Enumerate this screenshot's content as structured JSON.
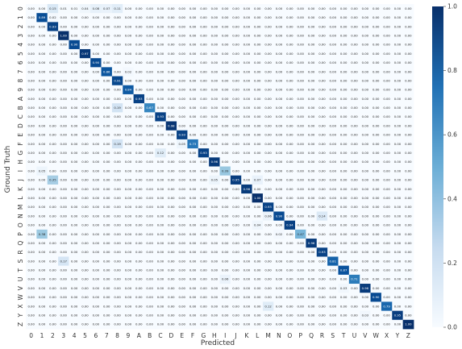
{
  "chart_data": {
    "type": "heatmap",
    "title": "",
    "xlabel": "Predicted",
    "ylabel": "Ground Truth",
    "labels": [
      "0",
      "1",
      "2",
      "3",
      "4",
      "5",
      "6",
      "7",
      "8",
      "9",
      "A",
      "B",
      "C",
      "D",
      "E",
      "F",
      "G",
      "H",
      "I",
      "J",
      "K",
      "L",
      "M",
      "N",
      "O",
      "P",
      "Q",
      "R",
      "S",
      "T",
      "U",
      "V",
      "W",
      "X",
      "Y",
      "Z"
    ],
    "value_range": [
      0.0,
      1.0
    ],
    "colorbar_ticks": [
      "0.0",
      "0.2",
      "0.4",
      "0.6",
      "0.8",
      "1.0"
    ],
    "colormap": "Blues",
    "cell_value_format": "2 decimals",
    "diagonal": [
      0.0,
      0.89,
      0.93,
      1.0,
      0.9,
      0.97,
      0.9,
      0.86,
      0.91,
      0.84,
      0.93,
      0.67,
      0.93,
      0.98,
      0.93,
      0.73,
      0.93,
      0.96,
      0.39,
      0.95,
      0.96,
      1.0,
      0.93,
      0.9,
      0.94,
      0.47,
      0.96,
      0.93,
      0.81,
      0.87,
      0.71,
      0.96,
      0.9,
      0.79,
      0.95,
      1.0
    ],
    "off_diagonal": [
      {
        "row": "0",
        "col": "2",
        "value": 0.15
      },
      {
        "row": "0",
        "col": "3",
        "value": 0.01
      },
      {
        "row": "0",
        "col": "4",
        "value": 0.01
      },
      {
        "row": "0",
        "col": "5",
        "value": 0.04
      },
      {
        "row": "0",
        "col": "6",
        "value": 0.08
      },
      {
        "row": "0",
        "col": "7",
        "value": 0.07
      },
      {
        "row": "0",
        "col": "8",
        "value": 0.11
      },
      {
        "row": "1",
        "col": "2",
        "value": 0.02
      },
      {
        "row": "7",
        "col": "9",
        "value": 0.02
      },
      {
        "row": "B",
        "col": "8",
        "value": 0.19
      },
      {
        "row": "F",
        "col": "8",
        "value": 0.19
      },
      {
        "row": "F",
        "col": "E",
        "value": 0.05
      },
      {
        "row": "G",
        "col": "C",
        "value": 0.12
      },
      {
        "row": "I",
        "col": "1",
        "value": 0.05
      },
      {
        "row": "J",
        "col": "2",
        "value": 0.35
      },
      {
        "row": "J",
        "col": "H",
        "value": 0.05
      },
      {
        "row": "J",
        "col": "L",
        "value": 0.07
      },
      {
        "row": "N",
        "col": "M",
        "value": 0.06
      },
      {
        "row": "N",
        "col": "R",
        "value": 0.14
      },
      {
        "row": "O",
        "col": "L",
        "value": 0.04
      },
      {
        "row": "P",
        "col": "1",
        "value": 0.38
      },
      {
        "row": "P",
        "col": "N",
        "value": 0.02
      },
      {
        "row": "S",
        "col": "3",
        "value": 0.17
      },
      {
        "row": "U",
        "col": "I",
        "value": 0.06
      },
      {
        "row": "V",
        "col": "T",
        "value": 0.03
      },
      {
        "row": "X",
        "col": "M",
        "value": 0.12
      },
      {
        "row": "Y",
        "col": "V",
        "value": 0.03
      }
    ]
  }
}
